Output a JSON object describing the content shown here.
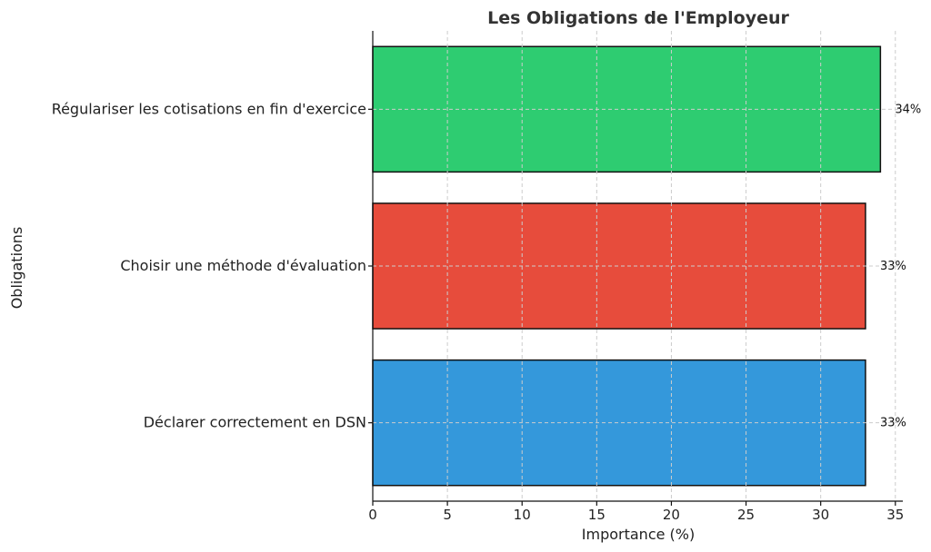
{
  "chart_data": {
    "type": "bar",
    "orientation": "horizontal",
    "title": "Les Obligations de l'Employeur",
    "xlabel": "Importance (%)",
    "ylabel": "Obligations",
    "categories": [
      "Régulariser les cotisations en fin d'exercice",
      "Choisir une méthode d'évaluation",
      "Déclarer correctement en DSN"
    ],
    "values": [
      34,
      33,
      33
    ],
    "data_labels": [
      "34%",
      "33%",
      "33%"
    ],
    "colors": [
      "#2ecc71",
      "#e74c3c",
      "#3498db"
    ],
    "xlim": [
      0,
      35.5
    ],
    "xticks": [
      0,
      5,
      10,
      15,
      20,
      25,
      30,
      35
    ],
    "grid": true
  }
}
